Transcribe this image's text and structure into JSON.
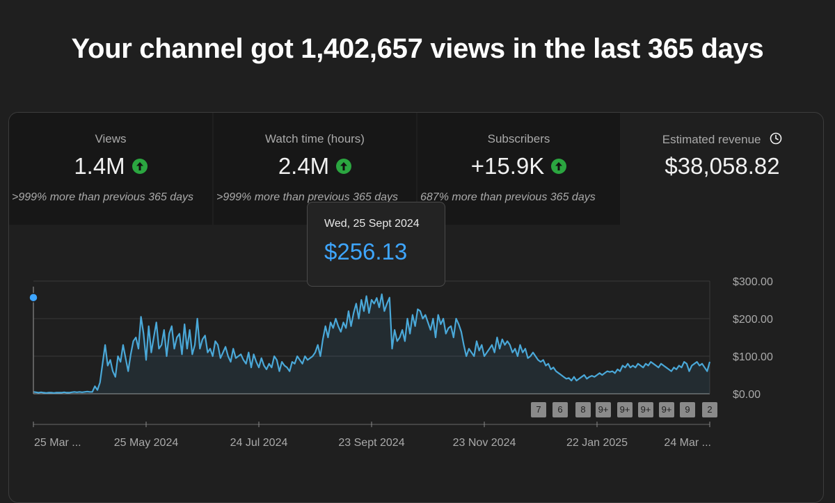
{
  "headline": "Your channel got 1,402,657 views in the last 365 days",
  "metrics": [
    {
      "label": "Views",
      "value": "1.4M",
      "trend": "up",
      "delta": ">999% more than previous 365 days"
    },
    {
      "label": "Watch time (hours)",
      "value": "2.4M",
      "trend": "up",
      "delta": ">999% more than previous 365 days"
    },
    {
      "label": "Subscribers",
      "value": "+15.9K",
      "trend": "up",
      "delta": "687% more than previous 365 days"
    },
    {
      "label": "Estimated revenue",
      "value": "$38,058.82",
      "icon": "clock-icon"
    }
  ],
  "tooltip": {
    "date": "Wed, 25 Sept 2024",
    "value": "$256.13"
  },
  "colors": {
    "accent": "#3ea6ff",
    "line": "#4aa8d8",
    "up": "#2ba640",
    "background": "#1f1f1f"
  },
  "chart_data": {
    "type": "area",
    "x_ticks": [
      "25 Mar ...",
      "25 May 2024",
      "24 Jul 2024",
      "23 Sept 2024",
      "23 Nov 2024",
      "22 Jan 2025",
      "24 Mar ..."
    ],
    "y_ticks": [
      "$0.00",
      "$100.00",
      "$200.00",
      "$300.00"
    ],
    "ylim": [
      0,
      300
    ],
    "grid": true,
    "highlight": {
      "date": "25 Sept 2024",
      "value": 256.13
    },
    "values": [
      5,
      4,
      3,
      4,
      3,
      2,
      3,
      3,
      2,
      3,
      3,
      3,
      4,
      3,
      3,
      4,
      5,
      4,
      5,
      4,
      5,
      6,
      5,
      5,
      20,
      10,
      30,
      80,
      130,
      75,
      90,
      60,
      45,
      100,
      85,
      130,
      95,
      60,
      105,
      140,
      150,
      120,
      205,
      160,
      90,
      180,
      110,
      150,
      190,
      120,
      130,
      170,
      100,
      160,
      180,
      120,
      150,
      160,
      105,
      185,
      120,
      170,
      105,
      130,
      200,
      120,
      145,
      155,
      110,
      120,
      100,
      140,
      130,
      95,
      110,
      125,
      100,
      85,
      120,
      95,
      100,
      105,
      90,
      80,
      110,
      70,
      105,
      85,
      70,
      95,
      75,
      65,
      80,
      70,
      100,
      90,
      60,
      85,
      75,
      70,
      60,
      85,
      80,
      100,
      90,
      80,
      100,
      90,
      95,
      100,
      110,
      130,
      100,
      145,
      180,
      150,
      190,
      175,
      200,
      180,
      165,
      190,
      175,
      220,
      180,
      215,
      240,
      200,
      250,
      220,
      260,
      215,
      250,
      240,
      255,
      230,
      265,
      220,
      240,
      256,
      120,
      170,
      140,
      150,
      170,
      140,
      200,
      160,
      210,
      180,
      225,
      220,
      200,
      210,
      190,
      170,
      200,
      150,
      210,
      185,
      200,
      160,
      175,
      180,
      150,
      200,
      185,
      165,
      130,
      100,
      120,
      110,
      100,
      140,
      115,
      130,
      100,
      110,
      120,
      130,
      110,
      150,
      120,
      145,
      130,
      140,
      130,
      110,
      120,
      100,
      130,
      110,
      120,
      95,
      100,
      110,
      100,
      90,
      85,
      90,
      75,
      80,
      65,
      70,
      60,
      55,
      50,
      45,
      40,
      42,
      35,
      45,
      35,
      40,
      45,
      50,
      40,
      45,
      48,
      45,
      50,
      55,
      50,
      55,
      60,
      58,
      60,
      55,
      65,
      60,
      75,
      70,
      80,
      70,
      75,
      70,
      80,
      75,
      70,
      80,
      75,
      85,
      80,
      75,
      70,
      80,
      75,
      70,
      65,
      60,
      70,
      65,
      75,
      70,
      85,
      80,
      60,
      75,
      80,
      85,
      75,
      80,
      70,
      60,
      85
    ]
  },
  "badges": [
    "7",
    "6",
    "8",
    "9+",
    "9+",
    "9+",
    "9+",
    "9",
    "2"
  ]
}
